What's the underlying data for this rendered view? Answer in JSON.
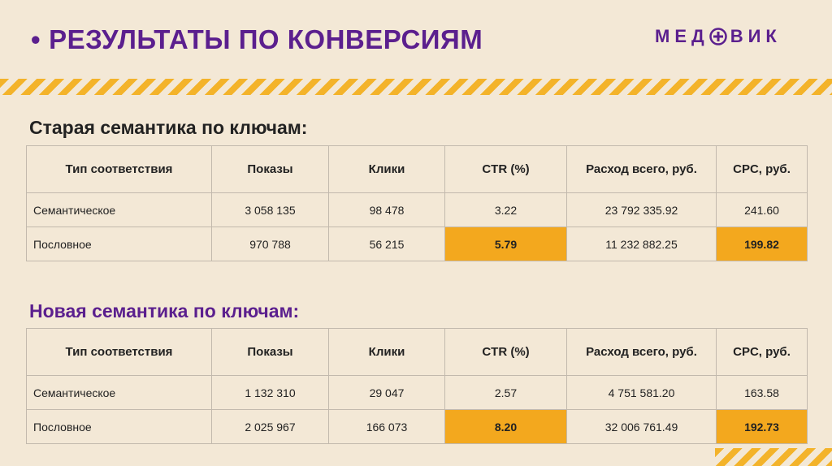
{
  "header": {
    "bullet": "•",
    "title": "РЕЗУЛЬТАТЫ ПО КОНВЕРСИЯМ",
    "logo_left": "МЕД",
    "logo_right": "ВИК"
  },
  "colors": {
    "accent": "#5b1f8e",
    "highlight": "#f3a81e",
    "stripe": "#f3b32a",
    "background": "#f3e8d6"
  },
  "columns": [
    "Тип соответствия",
    "Показы",
    "Клики",
    "CTR (%)",
    "Расход всего, руб.",
    "CPC, руб."
  ],
  "old": {
    "title": "Старая семантика по ключам:",
    "rows": [
      [
        "Семантическое",
        "3 058 135",
        "98 478",
        "3.22",
        "23 792 335.92",
        "241.60"
      ],
      [
        "Пословное",
        "970 788",
        "56 215",
        "5.79",
        "11 232 882.25",
        "199.82"
      ]
    ]
  },
  "new": {
    "title": "Новая семантика по ключам:",
    "rows": [
      [
        "Семантическое",
        "1 132 310",
        "29 047",
        "2.57",
        "4 751 581.20",
        "163.58"
      ],
      [
        "Пословное",
        "2 025 967",
        "166 073",
        "8.20",
        "32 006 761.49",
        "192.73"
      ]
    ]
  }
}
